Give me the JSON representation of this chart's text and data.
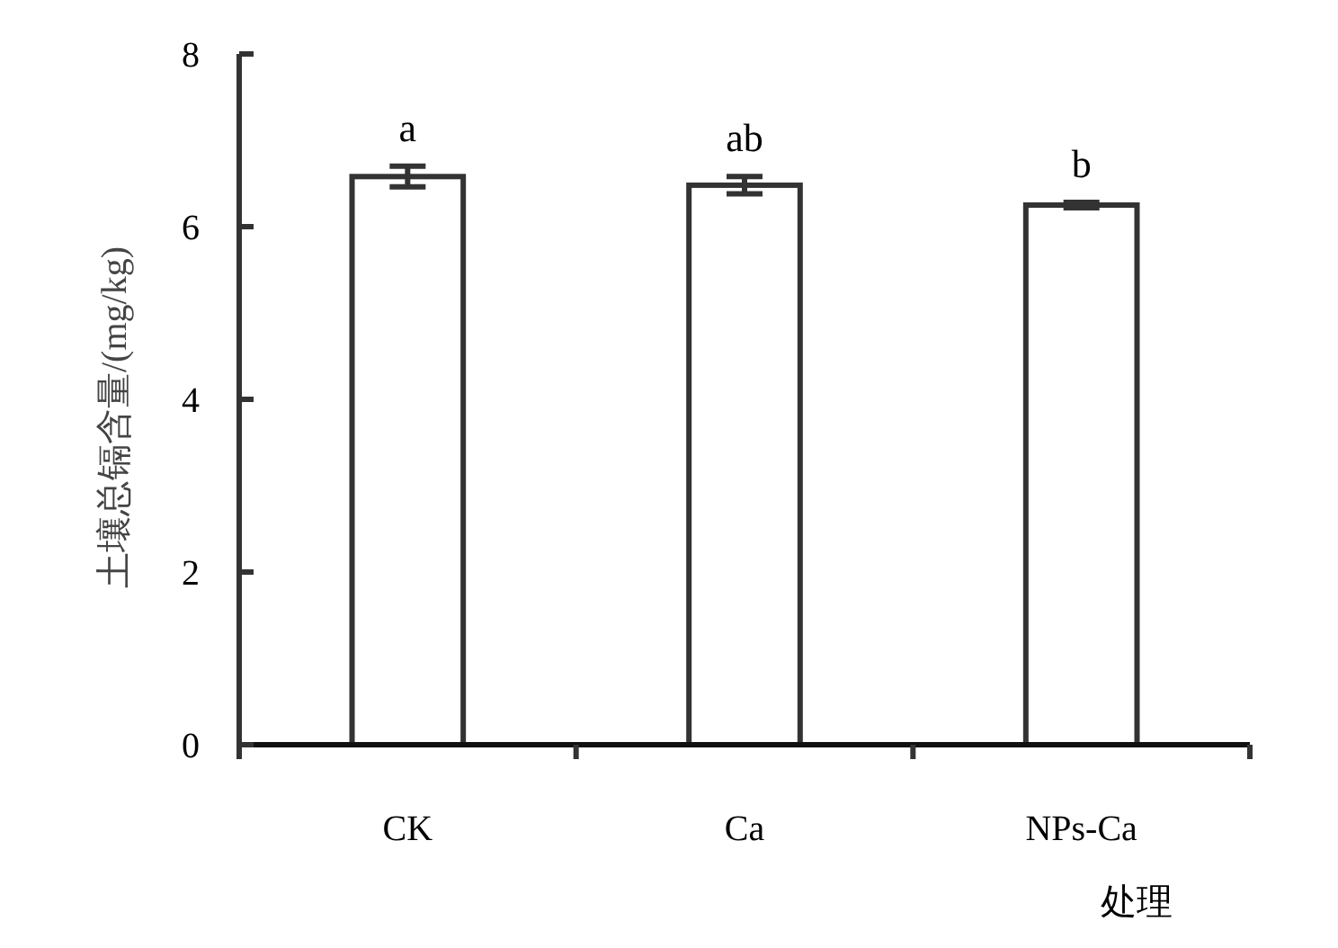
{
  "chart_data": {
    "type": "bar",
    "xlabel": "处理",
    "ylabel": "土壤总镉含量/(mg/kg)",
    "categories": [
      "CK",
      "Ca",
      "NPs-Ca"
    ],
    "values": [
      6.58,
      6.48,
      6.25
    ],
    "errors": [
      0.12,
      0.1,
      0.03
    ],
    "color": "#ffffff",
    "ylim": [
      0,
      8
    ],
    "yticks": [
      0,
      2,
      4,
      6,
      8
    ],
    "annotations": [
      "a",
      "ab",
      "b"
    ],
    "grid": false
  }
}
